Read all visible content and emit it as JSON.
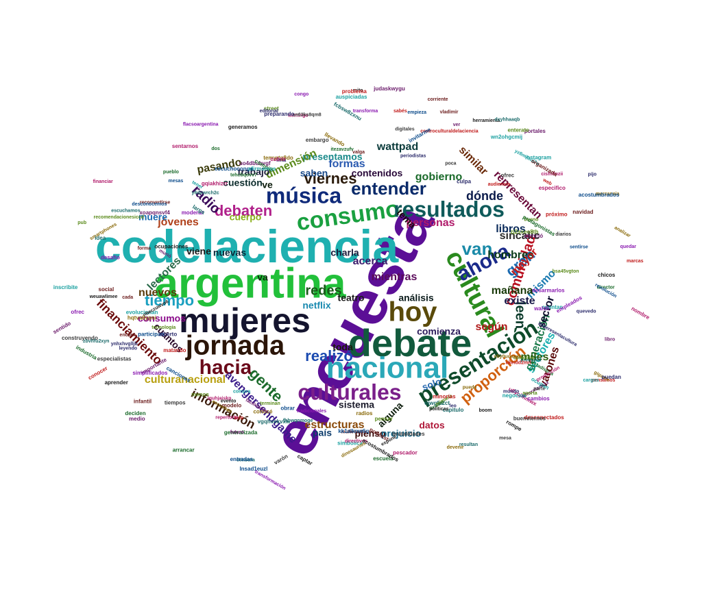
{
  "cloud": {
    "words": [
      {
        "text": "encuesta",
        "color": "#5b0f96"
      },
      {
        "text": "ccdelaciencia",
        "color": "#1fb0b0"
      },
      {
        "text": "argentina",
        "color": "#22c03a"
      },
      {
        "text": "debate",
        "color": "#125a3d"
      },
      {
        "text": "mujeres",
        "color": "#14142e"
      },
      {
        "text": "nacional",
        "color": "#2ba8b8"
      },
      {
        "text": "jornada",
        "color": "#2b1508"
      },
      {
        "text": "cultural",
        "color": "#2a8a1e"
      },
      {
        "text": "hoy",
        "color": "#5a4a0a"
      },
      {
        "text": "consumo",
        "color": "#1aa040"
      },
      {
        "text": "música",
        "color": "#0f2a7a"
      },
      {
        "text": "resultados",
        "color": "#0f5a5a"
      },
      {
        "text": "culturales",
        "color": "#7a1f8a"
      },
      {
        "text": "presentación",
        "color": "#0e4a2a"
      },
      {
        "text": "hacia",
        "color": "#6a0a1a"
      },
      {
        "text": "ahora",
        "color": "#1a2a8a"
      },
      {
        "text": "van",
        "color": "#1a8aa8"
      },
      {
        "text": "entender",
        "color": "#0a2a6a"
      },
      {
        "text": "debaten",
        "color": "#b0208a"
      },
      {
        "text": "viernes",
        "color": "#2a1a0a"
      },
      {
        "text": "tiempo",
        "color": "#1aa0c0"
      },
      {
        "text": "gente",
        "color": "#1a6a2a"
      },
      {
        "text": "proporción",
        "color": "#d06010"
      },
      {
        "text": "comunidad",
        "color": "#b81020"
      },
      {
        "text": "realizó",
        "color": "#1a4ab0"
      },
      {
        "text": "gran",
        "color": "#1a6ab0"
      },
      {
        "text": "leen",
        "color": "#0a3a2a"
      },
      {
        "text": "redes",
        "color": "#1a5a1a"
      },
      {
        "text": "dónde",
        "color": "#0a1a4a"
      },
      {
        "text": "formas",
        "color": "#2a5ab0"
      },
      {
        "text": "radio",
        "color": "#3a0a5a"
      },
      {
        "text": "financiamiento",
        "color": "#6a0a0a"
      },
      {
        "text": "culturanacional",
        "color": "#b8a010"
      },
      {
        "text": "información",
        "color": "#3a1a0a"
      },
      {
        "text": "avengersendgame",
        "color": "#3a1a8a"
      },
      {
        "text": "sectores",
        "color": "#1ab0b0"
      },
      {
        "text": "generación",
        "color": "#1a7a4a"
      },
      {
        "text": "estructuras",
        "color": "#8a4a0a"
      },
      {
        "text": "presentamos",
        "color": "#1a8a8a"
      },
      {
        "text": "contenidos",
        "color": "#2a0a3a"
      },
      {
        "text": "wattpad",
        "color": "#0a3a3a"
      },
      {
        "text": "gobierno",
        "color": "#1a6a2a"
      },
      {
        "text": "similar",
        "color": "#6a2a0a"
      },
      {
        "text": "representan",
        "color": "#6a0a3a"
      },
      {
        "text": "sincalic",
        "color": "#2a2a2a"
      },
      {
        "text": "hombres",
        "color": "#0a3a1a"
      },
      {
        "text": "libros",
        "color": "#0a2a5a"
      },
      {
        "text": "personas",
        "color": "#b01a6a"
      },
      {
        "text": "mayor",
        "color": "#c01a1a"
      },
      {
        "text": "mismo",
        "color": "#1a7ab0"
      },
      {
        "text": "existe",
        "color": "#1a1a4a"
      },
      {
        "text": "mañana",
        "color": "#1a3a0a"
      },
      {
        "text": "sector",
        "color": "#0a0a2a"
      },
      {
        "text": "varones",
        "color": "#5a0a0a"
      },
      {
        "text": "miles",
        "color": "#2a5a0a"
      },
      {
        "text": "según",
        "color": "#b01a1a"
      },
      {
        "text": "análisis",
        "color": "#0a1a1a"
      },
      {
        "text": "comienza",
        "color": "#2a1a5a"
      },
      {
        "text": "mientras",
        "color": "#5a0a5a"
      },
      {
        "text": "dimensión",
        "color": "#5a8a1a"
      },
      {
        "text": "saben",
        "color": "#1a4a8a"
      },
      {
        "text": "ve",
        "color": "#0a1a0a"
      },
      {
        "text": "acerca",
        "color": "#3a1a6a"
      },
      {
        "text": "charla",
        "color": "#1a1a3a"
      },
      {
        "text": "va",
        "color": "#0a2a0a"
      },
      {
        "text": "netflix",
        "color": "#1a8ab0"
      },
      {
        "text": "nuevos",
        "color": "#5a3a0a"
      },
      {
        "text": "lectores",
        "color": "#2a6a4a"
      },
      {
        "text": "jóvenes",
        "color": "#b0401a"
      },
      {
        "text": "cuestión",
        "color": "#0a2a2a"
      },
      {
        "text": "trabajo",
        "color": "#1a1a3a"
      },
      {
        "text": "pasando",
        "color": "#3a3a0a"
      },
      {
        "text": "cuerpo",
        "color": "#8ab01a"
      },
      {
        "text": "muere",
        "color": "#1a6ab0"
      },
      {
        "text": "viene",
        "color": "#1a1a1a"
      },
      {
        "text": "nuevas",
        "color": "#0a2a3a"
      },
      {
        "text": "consumos",
        "color": "#8a0a8a"
      },
      {
        "text": "cuántos",
        "color": "#2a0a2a"
      },
      {
        "text": "toda",
        "color": "#1a1a0a"
      },
      {
        "text": "solo",
        "color": "#2a6ab0"
      },
      {
        "text": "datos",
        "color": "#b01a3a"
      },
      {
        "text": "sistema",
        "color": "#1a1a2a"
      },
      {
        "text": "alguna",
        "color": "#0a1a0a"
      },
      {
        "text": "país",
        "color": "#0a3a6a"
      },
      {
        "text": "pienso",
        "color": "#3a0a0a"
      },
      {
        "text": "prejuicio",
        "color": "#1a6a8a"
      },
      {
        "text": "tema",
        "color": "#1a0a0a"
      },
      {
        "text": "teatro",
        "color": "#1a1a1a"
      }
    ],
    "small_words": [
      "weuawlimee",
      "ynhxhvglljb",
      "reconvertirse",
      "tehcbqovv7",
      "uo4dbuhvgf",
      "ojwgfa2ct",
      "u8ycjfnmwx",
      "smartphones",
      "participan",
      "mesa",
      "pensamos",
      "evolucionan",
      "transforma",
      "tecnología",
      "generamos",
      "leyendo",
      "encont",
      "itezavzufv",
      "portales",
      "fcbsw8zxnu",
      "lguhjaiskp",
      "llevando",
      "desconocemos",
      "construyendo",
      "desconectados",
      "cuentan",
      "flacsoargentina",
      "primaria",
      "herramienta",
      "mujeresenlacultura",
      "podcast",
      "director",
      "whuxmado1x",
      "zbvhfu2xyn",
      "domingo",
      "gigante",
      "obrar",
      "tiempos",
      "matando",
      "inscribite",
      "quedar",
      "street",
      "chicos",
      "puedan",
      "infantil",
      "industria",
      "sentido",
      "capitulo",
      "nombre",
      "devenir",
      "lnsad1euzl",
      "poca",
      "web",
      "simbólica",
      "walsh",
      "pub",
      "expone",
      "culpa",
      "modelo",
      "escuela",
      "medio",
      "pregunta",
      "financiar",
      "conocé",
      "empieza",
      "buenviernes",
      "tele",
      "negocios",
      "desafío",
      "colectivo",
      "mito",
      "alberto",
      "muñecotes",
      "arrancar",
      "murió",
      "vgqhvekvxw",
      "pescador",
      "vby0uuaaal",
      "revolución",
      "especialistas",
      "minorías",
      "wn2ohgcmij",
      "empleados",
      "menos",
      "rompe",
      "mundo",
      "social",
      "estadística",
      "facilidades",
      "censura",
      "cisfn9pzii",
      "hqtva8ypni",
      "mesas",
      "parte",
      "sabés",
      "ocupan",
      "tradicionales",
      "terminan",
      "ocupaciones",
      "editorial",
      "corriente",
      "deciden",
      "importante",
      "escuchamos",
      "producción",
      "radios",
      "kk1alknw6q",
      "sn63ks8qm8",
      "ukeidd2mrl",
      "yz8m7sui7u",
      "transformación",
      "recomendacionesiccd",
      "nbeczuwvo6",
      "preparando",
      "organizada",
      "generalizada",
      "judaskwygu",
      "resultan",
      "repertorio",
      "mercancia",
      "entradas",
      "brutalidades",
      "centroculturaldelaciencia",
      "auspiciadas",
      "moderar",
      "aporta",
      "boom",
      "leo",
      "cada",
      "llevara",
      "futuro",
      "dxyhhaaqb",
      "gqiakhizrr",
      "dinosaurios",
      "escuchocongo",
      "ofrec",
      "problema",
      "instagram",
      "desarmarlos",
      "bsa45vgton",
      "captar",
      "periodistas",
      "vladimir",
      "compite",
      "ver",
      "y6dxwrch2c",
      "especifico",
      "escuchan",
      "canciones",
      "diarios",
      "audiencia",
      "cargos",
      "cambios",
      "bueno",
      "aprender",
      "fina",
      "navidad",
      "protagonistas",
      "xoapqnsvf4",
      "fhbwqnmoge",
      "sentarnos",
      "temyrtg8do",
      "invitarme",
      "varón",
      "próximo",
      "tener",
      "simplificados",
      "zj2sxeo8th",
      "políticas",
      "quevedo",
      "valga",
      "pueblo",
      "libro",
      "idea",
      "directivos",
      "puede",
      "sentirse",
      "embargo",
      "marcas",
      "afirmamos",
      "congo",
      "pensar",
      "evento",
      "pijo",
      "forma",
      "dos",
      "atenció",
      "larga",
      "cubrir",
      "analizar",
      "acostumbrados",
      "digitales",
      "conocer",
      "compra",
      "ofrec",
      "enterate",
      "acostumbrados"
    ],
    "small_colors": [
      "#1a1a1a",
      "#2a2a6a",
      "#6a1a1a",
      "#1a6a2a",
      "#6a1a6a",
      "#1a6a6a",
      "#b01a6a",
      "#8a6a0a",
      "#0a4a8a",
      "#3a3a3a",
      "#c01a1a",
      "#1aa0a0",
      "#8a1ab0",
      "#5a8a1a"
    ]
  }
}
